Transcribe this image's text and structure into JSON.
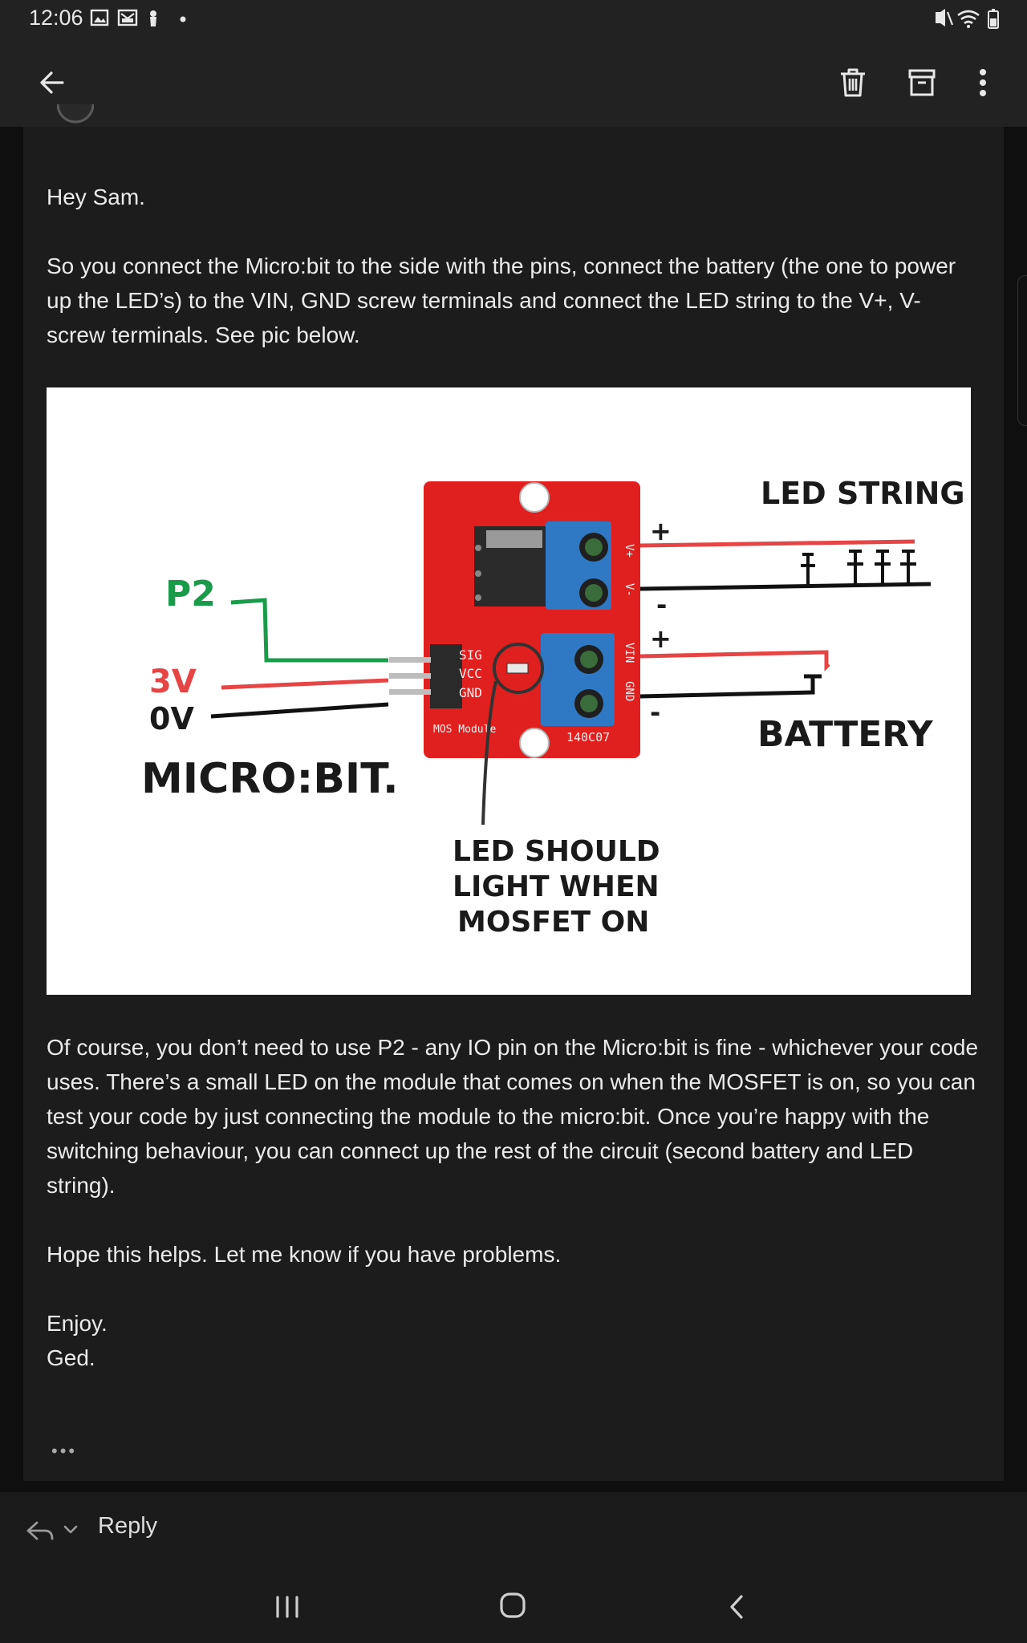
{
  "status_bar": {
    "time": "12:06",
    "left_icons": [
      "gallery-icon",
      "gallery-icon",
      "mail-icon",
      "notification-icon",
      "dot-icon"
    ],
    "right_icons": [
      "mute-vibrate-icon",
      "wifi-icon",
      "battery-icon"
    ]
  },
  "app_bar": {
    "back_icon": "arrow-left-icon",
    "actions": [
      "trash-icon",
      "archive-icon",
      "more-vert-icon"
    ]
  },
  "email": {
    "greeting": "Hey Sam.",
    "paragraph1": "So you connect the Micro:bit to the side with the pins, connect the battery (the one to power up the LED’s) to the VIN, GND screw terminals and connect the LED string to the V+, V- screw terminals. See pic below.",
    "figure": {
      "labels": {
        "led_string": "LED STRING",
        "battery": "BATTERY",
        "p2": "P2",
        "v3": "3V",
        "v0": "0V",
        "microbit": "MICRO:BIT.",
        "led_should": "LED SHOULD",
        "light_when": "LIGHT WHEN",
        "mosfet_on": "MOSFET ON",
        "plus": "+",
        "minus": "-"
      },
      "module": {
        "sig": "SIG",
        "vcc": "VCC",
        "gnd": "GND",
        "mos_module": "MOS Module",
        "code": "140C07",
        "v_plus": "V+",
        "v_minus": "V-",
        "vin": "VIN",
        "gnd_term": "GND"
      },
      "colors": {
        "board": "#e0201f",
        "terminal": "#2f78c4",
        "green_wire": "#1a9b4a",
        "red_wire": "#e64545"
      }
    },
    "paragraph2": "Of course, you don’t need to use P2 - any IO pin on the Micro:bit is fine - whichever your code uses. There’s a small LED on the module that comes on when the MOSFET is on, so you can test your code by just connecting the module to the micro:bit. Once you’re happy with the switching behaviour, you can connect up the rest of the circuit (second battery and LED string).",
    "paragraph3": "Hope this helps. Let me know if you have problems.",
    "signoff": "Enjoy.",
    "signature": "Ged.",
    "more": "•••"
  },
  "reply_bar": {
    "reply_label": "Reply",
    "reply_icon": "reply-icon",
    "dropdown_icon": "chevron-down-icon"
  },
  "nav_bar": {
    "buttons": [
      "recent-apps-icon",
      "home-icon",
      "back-icon"
    ]
  }
}
